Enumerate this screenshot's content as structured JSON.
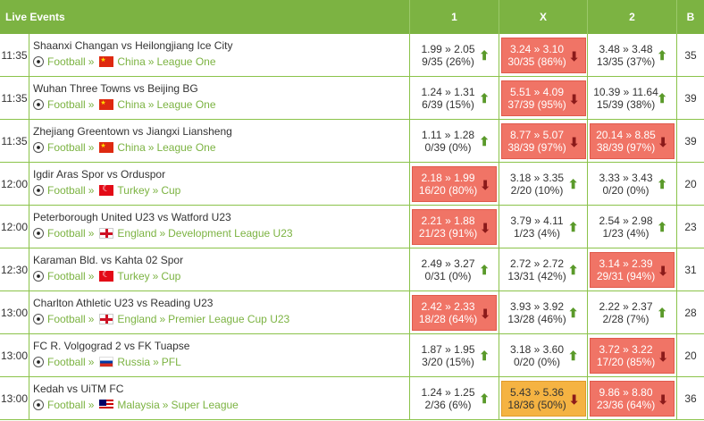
{
  "header": {
    "events": "Live Events",
    "col1": "1",
    "colx": "X",
    "col2": "2",
    "colb": "B"
  },
  "rows": [
    {
      "time": "11:35",
      "title": "Shaanxi Changan vs Heilongjiang Ice City",
      "sport": "Football",
      "flag": "china",
      "country": "China",
      "league": "League One",
      "o1": {
        "odds": "1.99 » 2.05",
        "votes": "9/35 (26%)",
        "style": "plain",
        "dir": "up"
      },
      "ox": {
        "odds": "3.24 » 3.10",
        "votes": "30/35 (86%)",
        "style": "red",
        "dir": "down"
      },
      "o2": {
        "odds": "3.48 » 3.48",
        "votes": "13/35 (37%)",
        "style": "plain",
        "dir": "up"
      },
      "b": "35"
    },
    {
      "time": "11:35",
      "title": "Wuhan Three Towns vs Beijing BG",
      "sport": "Football",
      "flag": "china",
      "country": "China",
      "league": "League One",
      "o1": {
        "odds": "1.24 » 1.31",
        "votes": "6/39 (15%)",
        "style": "plain",
        "dir": "up"
      },
      "ox": {
        "odds": "5.51 » 4.09",
        "votes": "37/39 (95%)",
        "style": "red",
        "dir": "down"
      },
      "o2": {
        "odds": "10.39 » 11.64",
        "votes": "15/39 (38%)",
        "style": "plain",
        "dir": "up"
      },
      "b": "39"
    },
    {
      "time": "11:35",
      "title": "Zhejiang Greentown vs Jiangxi Liansheng",
      "sport": "Football",
      "flag": "china",
      "country": "China",
      "league": "League One",
      "o1": {
        "odds": "1.11 » 1.28",
        "votes": "0/39 (0%)",
        "style": "plain",
        "dir": "up"
      },
      "ox": {
        "odds": "8.77 » 5.07",
        "votes": "38/39 (97%)",
        "style": "red",
        "dir": "down"
      },
      "o2": {
        "odds": "20.14 » 8.85",
        "votes": "38/39 (97%)",
        "style": "red",
        "dir": "down"
      },
      "b": "39"
    },
    {
      "time": "12:00",
      "title": "Igdir Aras Spor vs Orduspor",
      "sport": "Football",
      "flag": "turkey",
      "country": "Turkey",
      "league": "Cup",
      "o1": {
        "odds": "2.18 » 1.99",
        "votes": "16/20 (80%)",
        "style": "red",
        "dir": "down"
      },
      "ox": {
        "odds": "3.18 » 3.35",
        "votes": "2/20 (10%)",
        "style": "plain",
        "dir": "up"
      },
      "o2": {
        "odds": "3.33 » 3.43",
        "votes": "0/20 (0%)",
        "style": "plain",
        "dir": "up"
      },
      "b": "20"
    },
    {
      "time": "12:00",
      "title": "Peterborough United U23 vs Watford U23",
      "sport": "Football",
      "flag": "england",
      "country": "England",
      "league": "Development League U23",
      "o1": {
        "odds": "2.21 » 1.88",
        "votes": "21/23 (91%)",
        "style": "red",
        "dir": "down"
      },
      "ox": {
        "odds": "3.79 » 4.11",
        "votes": "1/23 (4%)",
        "style": "plain",
        "dir": "up"
      },
      "o2": {
        "odds": "2.54 » 2.98",
        "votes": "1/23 (4%)",
        "style": "plain",
        "dir": "up"
      },
      "b": "23"
    },
    {
      "time": "12:30",
      "title": "Karaman Bld. vs Kahta 02 Spor",
      "sport": "Football",
      "flag": "turkey",
      "country": "Turkey",
      "league": "Cup",
      "o1": {
        "odds": "2.49 » 3.27",
        "votes": "0/31 (0%)",
        "style": "plain",
        "dir": "up"
      },
      "ox": {
        "odds": "2.72 » 2.72",
        "votes": "13/31 (42%)",
        "style": "plain",
        "dir": "up"
      },
      "o2": {
        "odds": "3.14 » 2.39",
        "votes": "29/31 (94%)",
        "style": "red",
        "dir": "down"
      },
      "b": "31"
    },
    {
      "time": "13:00",
      "title": "Charlton Athletic U23 vs Reading U23",
      "sport": "Football",
      "flag": "england",
      "country": "England",
      "league": "Premier League Cup U23",
      "o1": {
        "odds": "2.42 » 2.33",
        "votes": "18/28 (64%)",
        "style": "red",
        "dir": "down"
      },
      "ox": {
        "odds": "3.93 » 3.92",
        "votes": "13/28 (46%)",
        "style": "plain",
        "dir": "up"
      },
      "o2": {
        "odds": "2.22 » 2.37",
        "votes": "2/28 (7%)",
        "style": "plain",
        "dir": "up"
      },
      "b": "28"
    },
    {
      "time": "13:00",
      "title": "FC R. Volgograd 2 vs FK Tuapse",
      "sport": "Football",
      "flag": "russia",
      "country": "Russia",
      "league": "PFL",
      "o1": {
        "odds": "1.87 » 1.95",
        "votes": "3/20 (15%)",
        "style": "plain",
        "dir": "up"
      },
      "ox": {
        "odds": "3.18 » 3.60",
        "votes": "0/20 (0%)",
        "style": "plain",
        "dir": "up"
      },
      "o2": {
        "odds": "3.72 » 3.22",
        "votes": "17/20 (85%)",
        "style": "red",
        "dir": "down"
      },
      "b": "20"
    },
    {
      "time": "13:00",
      "title": "Kedah vs UiTM FC",
      "sport": "Football",
      "flag": "malaysia",
      "country": "Malaysia",
      "league": "Super League",
      "o1": {
        "odds": "1.24 » 1.25",
        "votes": "2/36 (6%)",
        "style": "plain",
        "dir": "up"
      },
      "ox": {
        "odds": "5.43 » 5.36",
        "votes": "18/36 (50%)",
        "style": "orange",
        "dir": "down"
      },
      "o2": {
        "odds": "9.86 » 8.80",
        "votes": "23/36 (64%)",
        "style": "red",
        "dir": "down"
      },
      "b": "36"
    }
  ]
}
